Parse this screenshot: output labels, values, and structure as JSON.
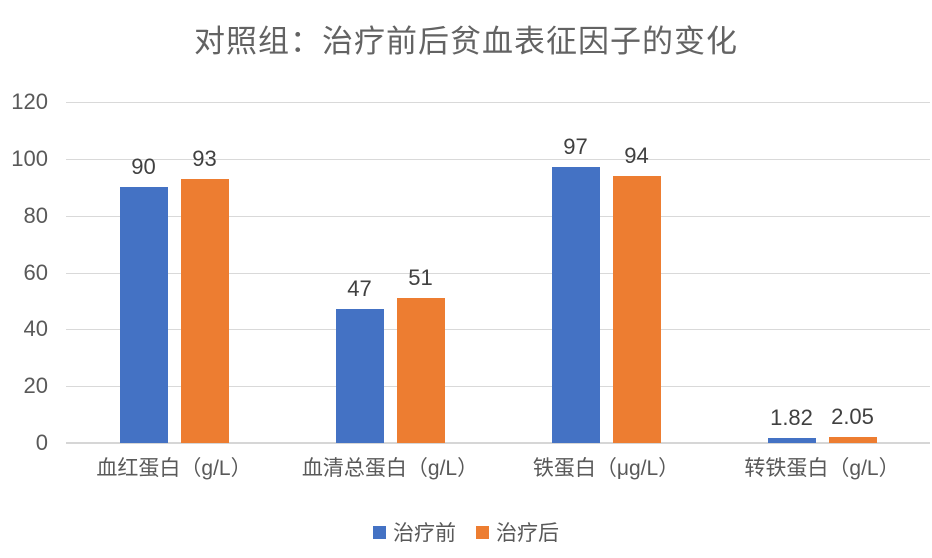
{
  "chart_data": {
    "type": "bar",
    "title": "对照组：治疗前后贫血表征因子的变化",
    "categories": [
      "血红蛋白（g/L）",
      "血清总蛋白（g/L）",
      "铁蛋白（μg/L）",
      "转铁蛋白（g/L）"
    ],
    "series": [
      {
        "name": "治疗前",
        "color": "#4472C4",
        "values": [
          90,
          47,
          97,
          1.82
        ],
        "labels": [
          "90",
          "47",
          "97",
          "1.82"
        ]
      },
      {
        "name": "治疗后",
        "color": "#ED7D31",
        "values": [
          93,
          51,
          94,
          2.05
        ],
        "labels": [
          "93",
          "51",
          "94",
          "2.05"
        ]
      }
    ],
    "ylim": [
      0,
      120
    ],
    "yticks": [
      0,
      20,
      40,
      60,
      80,
      100,
      120
    ],
    "ytick_labels": [
      "0",
      "20",
      "40",
      "60",
      "80",
      "100",
      "120"
    ],
    "xlabel": "",
    "ylabel": "",
    "grid": true,
    "legend_position": "bottom"
  },
  "colors": {
    "series_before": "#4472C4",
    "series_after": "#ED7D31",
    "gridline": "#D9D9D9",
    "axis_line": "#D6D6D6",
    "title_text": "#636363",
    "axis_text": "#595959",
    "data_label_text": "#404040",
    "background": "#FFFFFF"
  }
}
